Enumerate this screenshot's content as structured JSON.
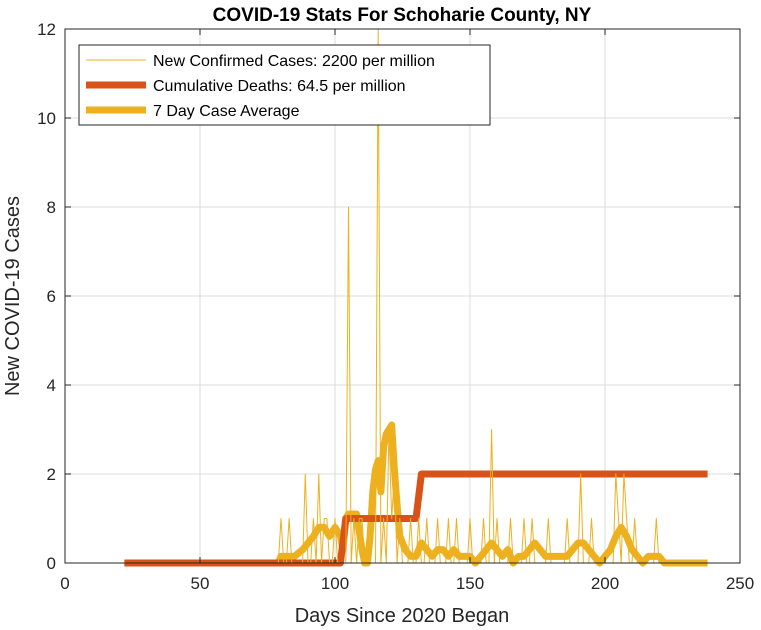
{
  "chart_data": {
    "type": "line",
    "title": "COVID-19 Stats For Schoharie County, NY",
    "xlabel": "Days Since 2020 Began",
    "ylabel": "New COVID-19 Cases",
    "xlim": [
      0,
      250
    ],
    "ylim": [
      0,
      12
    ],
    "xticks": [
      0,
      50,
      100,
      150,
      200,
      250
    ],
    "yticks": [
      0,
      2,
      4,
      6,
      8,
      10,
      12
    ],
    "grid": true,
    "legend_position": "top-left",
    "series": [
      {
        "name": "New Confirmed Cases: 2200 per million",
        "color": "#EDB120",
        "width": "thin",
        "x": [
          22,
          79,
          80,
          81,
          82,
          83,
          84,
          85,
          86,
          87,
          88,
          89,
          90,
          91,
          92,
          93,
          94,
          95,
          96,
          97,
          98,
          99,
          100,
          101,
          102,
          103,
          104,
          105,
          106,
          107,
          108,
          109,
          110,
          111,
          112,
          113,
          114,
          115,
          116,
          117,
          118,
          119,
          120,
          121,
          122,
          123,
          124,
          125,
          126,
          127,
          128,
          129,
          130,
          131,
          132,
          133,
          134,
          135,
          136,
          137,
          138,
          139,
          140,
          141,
          142,
          143,
          144,
          145,
          146,
          147,
          148,
          149,
          150,
          151,
          152,
          153,
          154,
          155,
          156,
          157,
          158,
          159,
          160,
          161,
          162,
          163,
          164,
          165,
          166,
          167,
          168,
          169,
          170,
          171,
          172,
          173,
          174,
          175,
          176,
          177,
          178,
          179,
          180,
          181,
          182,
          183,
          184,
          185,
          186,
          187,
          188,
          189,
          190,
          191,
          192,
          193,
          194,
          195,
          196,
          197,
          198,
          199,
          200,
          201,
          202,
          203,
          204,
          205,
          206,
          207,
          208,
          209,
          210,
          211,
          212,
          213,
          214,
          215,
          216,
          217,
          218,
          219,
          220,
          221,
          222,
          223,
          224,
          225,
          226,
          227,
          228,
          229,
          230,
          231,
          232,
          233,
          234,
          235,
          236,
          237,
          238
        ],
        "y": [
          0,
          0,
          1,
          0,
          0,
          1,
          0,
          0,
          0,
          0,
          0,
          2,
          0,
          0,
          1,
          0,
          2,
          0,
          1,
          1,
          0,
          0,
          1,
          0,
          0,
          0,
          0,
          8,
          0,
          1,
          0,
          1,
          1,
          0,
          0,
          0,
          0,
          0,
          12,
          0,
          1,
          0,
          3,
          1,
          2,
          0,
          1,
          0,
          0,
          0,
          1,
          0,
          0,
          1,
          0,
          0,
          1,
          0,
          0,
          0,
          1,
          0,
          0,
          0,
          1,
          0,
          0,
          1,
          0,
          0,
          0,
          0,
          1,
          0,
          0,
          0,
          0,
          1,
          0,
          0,
          3,
          0,
          1,
          0,
          0,
          0,
          0,
          1,
          0,
          0,
          0,
          0,
          1,
          0,
          0,
          1,
          0,
          0,
          0,
          0,
          0,
          1,
          0,
          0,
          0,
          0,
          0,
          0,
          1,
          0,
          0,
          0,
          0,
          2,
          0,
          0,
          0,
          1,
          0,
          0,
          0,
          0,
          0,
          0,
          0,
          0,
          2,
          1,
          0,
          2,
          1,
          0,
          0,
          1,
          0,
          0,
          0,
          0,
          0,
          0,
          0,
          1,
          0,
          0,
          0,
          0,
          0,
          0,
          0,
          0,
          0,
          0,
          0,
          0,
          0,
          0,
          0,
          0,
          0,
          0,
          0
        ]
      },
      {
        "name": "Cumulative Deaths: 64.5 per million",
        "color": "#D95319",
        "width": "thick",
        "x": [
          22,
          102,
          103,
          104,
          130,
          131,
          132,
          238
        ],
        "y": [
          0,
          0,
          0.5,
          1,
          1,
          1.5,
          2,
          2
        ]
      },
      {
        "name": "7 Day Case Average",
        "color": "#EDB120",
        "width": "thick",
        "x": [
          22,
          79,
          80,
          82,
          85,
          88,
          90,
          92,
          94,
          96,
          98,
          100,
          102,
          103,
          104,
          105,
          106,
          108,
          110,
          111,
          112,
          113,
          114,
          115,
          116,
          117,
          118,
          119,
          120,
          121,
          122,
          123,
          124,
          126,
          128,
          130,
          132,
          134,
          136,
          138,
          140,
          142,
          144,
          146,
          148,
          150,
          152,
          154,
          156,
          158,
          160,
          162,
          164,
          166,
          168,
          170,
          172,
          174,
          176,
          178,
          180,
          182,
          184,
          186,
          188,
          190,
          192,
          194,
          196,
          198,
          200,
          202,
          204,
          206,
          208,
          210,
          212,
          214,
          216,
          218,
          220,
          222,
          224,
          226,
          228,
          230,
          232,
          234,
          236,
          238
        ],
        "y": [
          0,
          0,
          0.15,
          0.15,
          0.15,
          0.3,
          0.45,
          0.6,
          0.8,
          0.8,
          0.6,
          0.8,
          0.6,
          0.3,
          1,
          1.1,
          1.1,
          1.1,
          0.3,
          0,
          0,
          0.6,
          1.6,
          2.1,
          2.3,
          1.6,
          2.6,
          2.9,
          3.0,
          3.1,
          2.1,
          1.3,
          0.6,
          0.3,
          0.15,
          0.15,
          0.45,
          0.3,
          0.15,
          0.3,
          0.3,
          0.15,
          0.3,
          0.15,
          0.15,
          0.15,
          0,
          0.15,
          0.3,
          0.45,
          0.3,
          0.15,
          0.3,
          0,
          0.15,
          0.15,
          0.3,
          0.45,
          0.3,
          0.15,
          0.15,
          0.15,
          0.15,
          0.15,
          0.3,
          0.45,
          0.45,
          0.3,
          0.15,
          0,
          0.15,
          0.3,
          0.6,
          0.8,
          0.6,
          0.3,
          0.15,
          0,
          0.15,
          0.15,
          0.15,
          0,
          0,
          0,
          0,
          0,
          0,
          0,
          0,
          0
        ]
      }
    ]
  }
}
